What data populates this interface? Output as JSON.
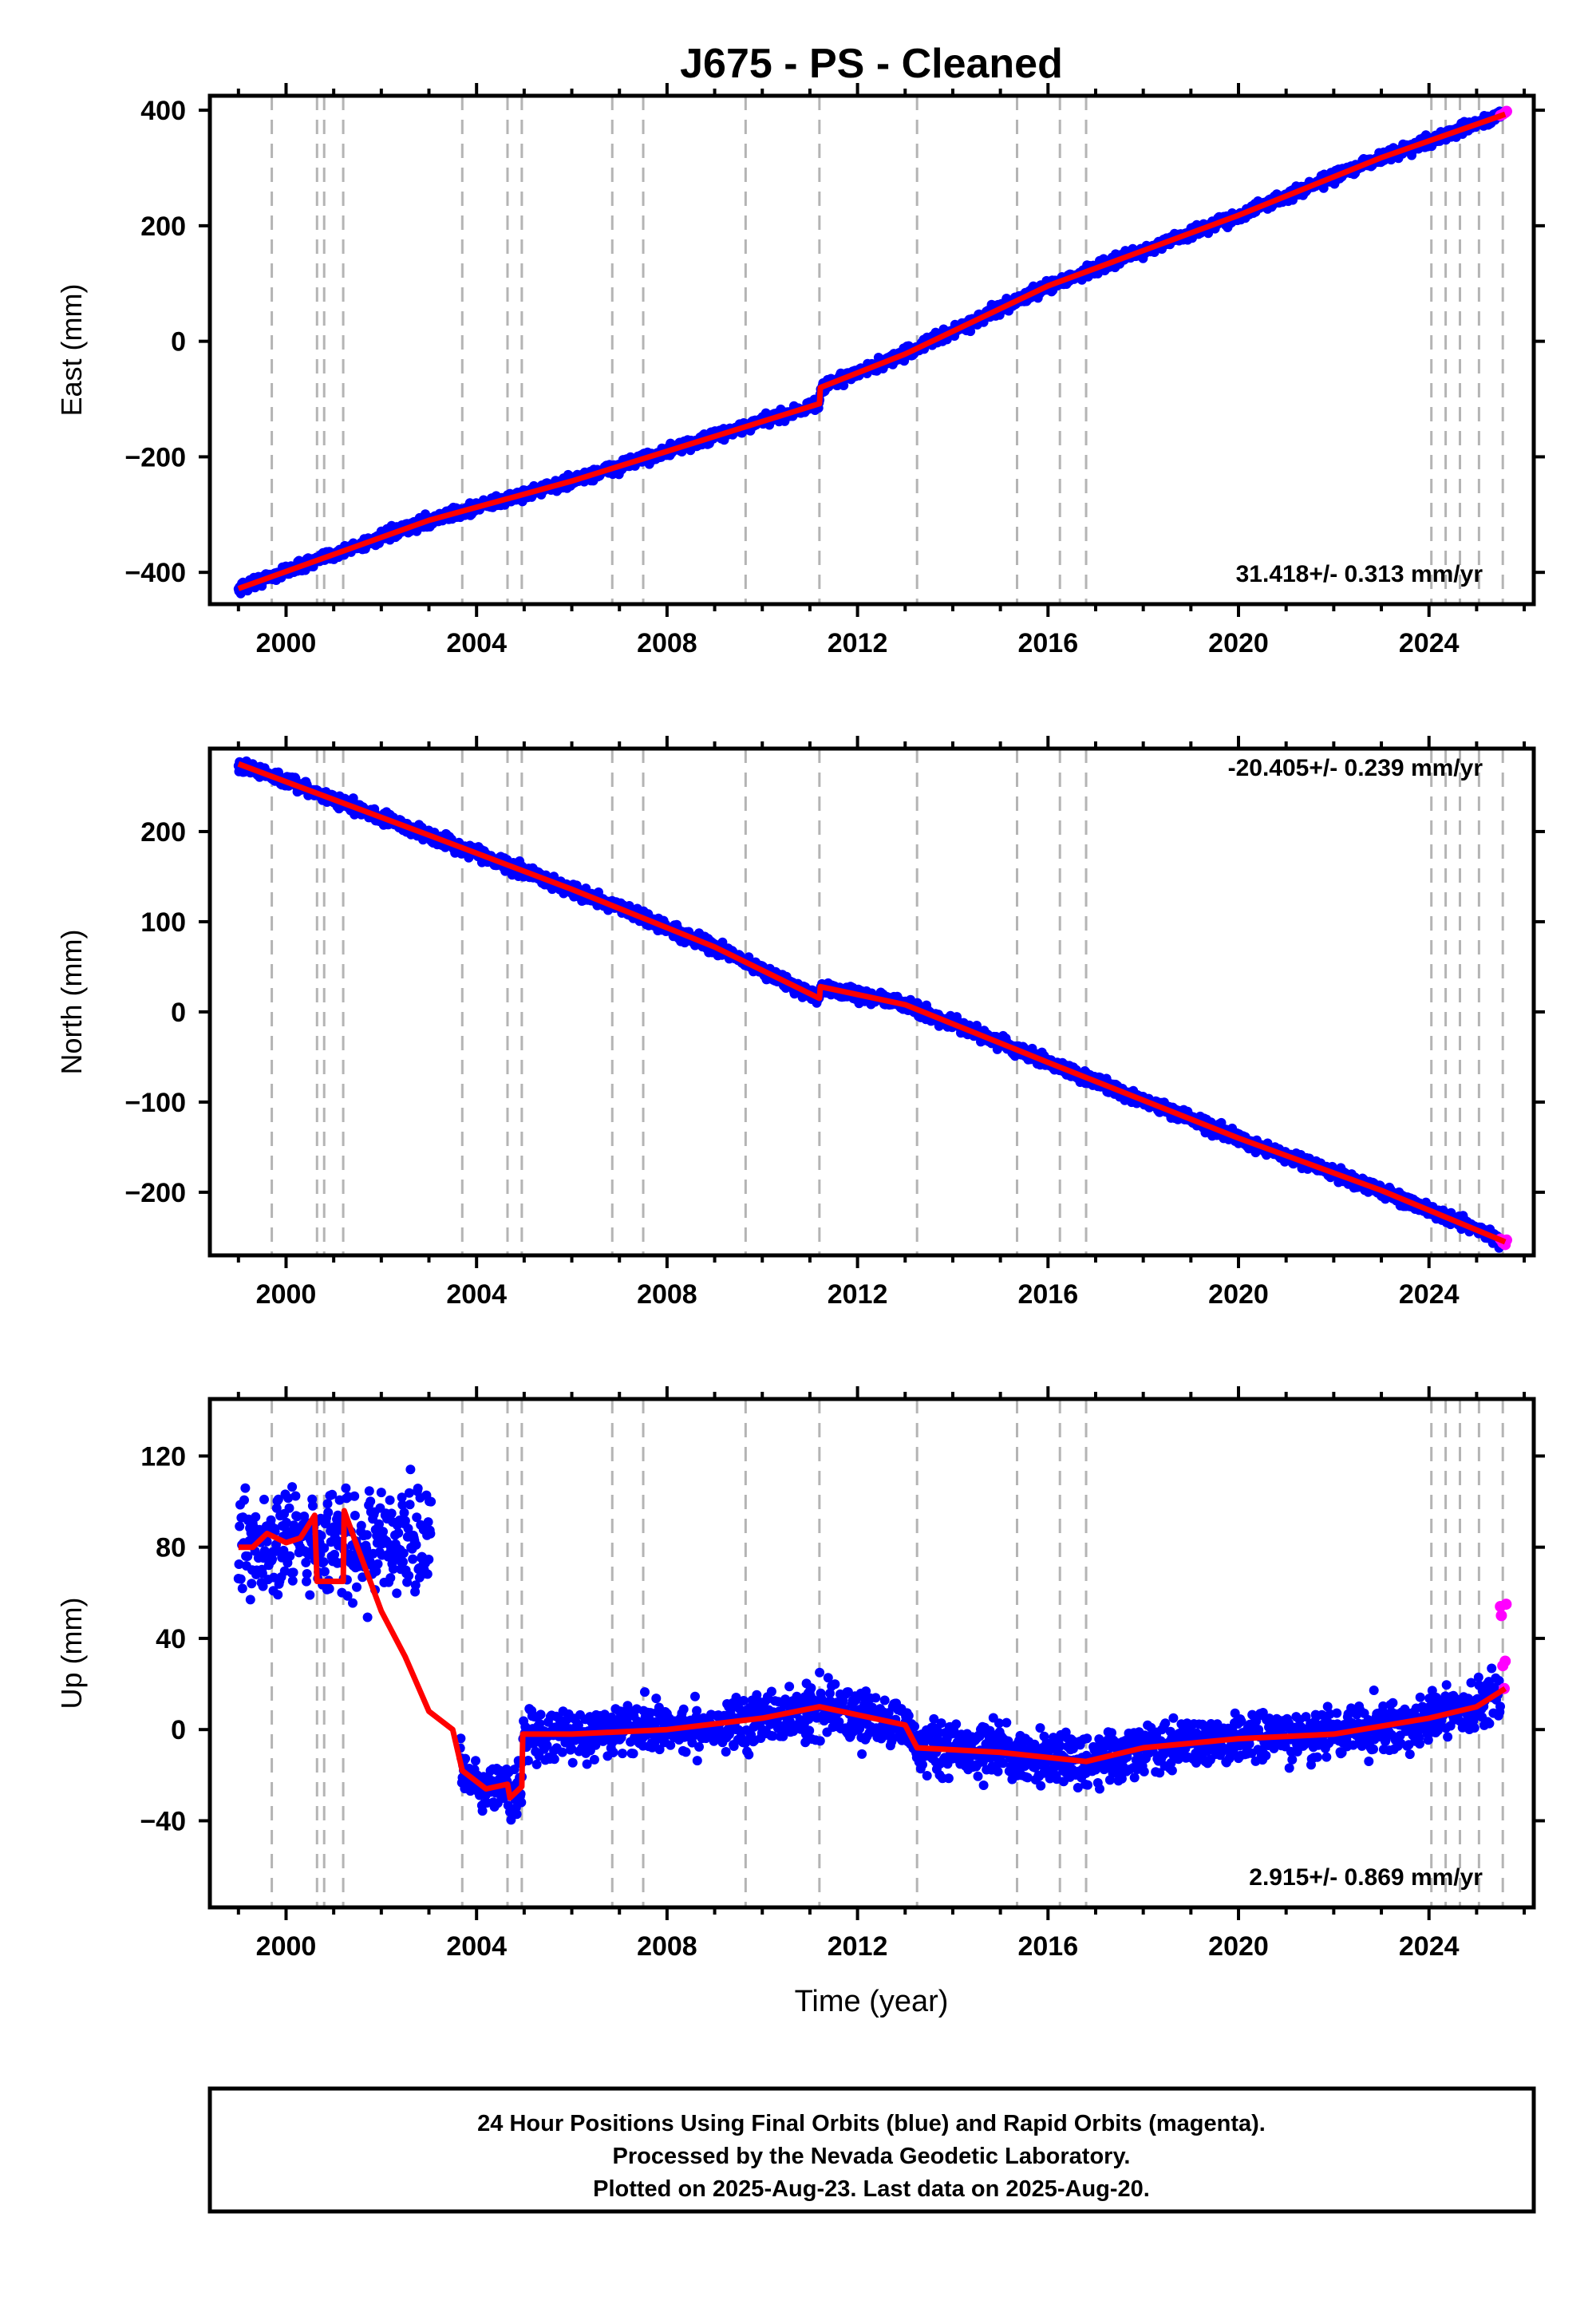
{
  "chart_data": {
    "type": "scatter",
    "title": "J675  - PS - Cleaned",
    "xlabel": "Time (year)",
    "xlim": [
      1998.4,
      2026.2
    ],
    "xticks": [
      2000,
      2004,
      2008,
      2012,
      2016,
      2020,
      2024
    ],
    "event_lines": [
      1999.7,
      2000.65,
      2000.8,
      2001.2,
      2003.7,
      2004.65,
      2004.95,
      2006.85,
      2007.5,
      2009.65,
      2011.2,
      2013.25,
      2015.35,
      2016.25,
      2016.8,
      2024.05,
      2024.35,
      2024.65,
      2025.05,
      2025.55
    ],
    "colors": {
      "final": "#0000ff",
      "rapid": "#ff00ff",
      "model": "#ff0000",
      "event_line": "#b4b4b4"
    },
    "panels": [
      {
        "component": "East",
        "ylabel": "East (mm)",
        "ylim": [
          -455,
          425
        ],
        "yticks": [
          -400,
          -200,
          0,
          200,
          400
        ],
        "rate_label": "31.418+/- 0.313 mm/yr",
        "model": [
          [
            1999.0,
            -428
          ],
          [
            2003.0,
            -310
          ],
          [
            2006.0,
            -242
          ],
          [
            2011.2,
            -108
          ],
          [
            2011.22,
            -80
          ],
          [
            2013.0,
            -22
          ],
          [
            2016.0,
            96
          ],
          [
            2020.0,
            218
          ],
          [
            2023.0,
            318
          ],
          [
            2025.6,
            393
          ]
        ],
        "noise": 7,
        "rapid": [
          [
            2025.5,
            391
          ],
          [
            2025.55,
            393
          ],
          [
            2025.6,
            396
          ],
          [
            2025.63,
            398
          ]
        ]
      },
      {
        "component": "North",
        "ylabel": "North (mm)",
        "ylim": [
          -270,
          292
        ],
        "yticks": [
          -200,
          -100,
          0,
          100,
          200
        ],
        "rate_label": "-20.405+/- 0.239 mm/yr",
        "model": [
          [
            1999.0,
            275
          ],
          [
            2003.0,
            196
          ],
          [
            2006.0,
            136
          ],
          [
            2009.0,
            72
          ],
          [
            2011.2,
            15
          ],
          [
            2011.22,
            28
          ],
          [
            2013.0,
            8
          ],
          [
            2016.0,
            -56
          ],
          [
            2020.0,
            -140
          ],
          [
            2023.0,
            -198
          ],
          [
            2025.6,
            -255
          ]
        ],
        "noise": 5,
        "rapid": [
          [
            2025.5,
            -252
          ],
          [
            2025.55,
            -256
          ],
          [
            2025.6,
            -258
          ],
          [
            2025.63,
            -253
          ]
        ]
      },
      {
        "component": "Up",
        "ylabel": "Up (mm)",
        "ylim": [
          -78,
          145
        ],
        "yticks": [
          -40,
          0,
          40,
          80,
          120
        ],
        "rate_label": "2.915+/- 0.869 mm/yr",
        "model": [
          [
            1999.0,
            80
          ],
          [
            1999.3,
            80
          ],
          [
            1999.6,
            86
          ],
          [
            2000.0,
            82
          ],
          [
            2000.3,
            84
          ],
          [
            2000.6,
            94
          ],
          [
            2000.65,
            65
          ],
          [
            2001.2,
            65
          ],
          [
            2001.22,
            96
          ],
          [
            2001.5,
            80
          ],
          [
            2002.0,
            52
          ],
          [
            2002.5,
            32
          ],
          [
            2003.0,
            8
          ],
          [
            2003.5,
            0
          ],
          [
            2003.7,
            -18
          ],
          [
            2004.2,
            -26
          ],
          [
            2004.65,
            -24
          ],
          [
            2004.7,
            -30
          ],
          [
            2004.95,
            -25
          ],
          [
            2004.97,
            -2
          ],
          [
            2006.0,
            -2
          ],
          [
            2008.0,
            0
          ],
          [
            2010.0,
            5
          ],
          [
            2011.2,
            10
          ],
          [
            2013.0,
            2
          ],
          [
            2013.25,
            -8
          ],
          [
            2015.0,
            -10
          ],
          [
            2016.8,
            -14
          ],
          [
            2018.0,
            -8
          ],
          [
            2020.0,
            -4
          ],
          [
            2022.0,
            -2
          ],
          [
            2024.0,
            5
          ],
          [
            2025.0,
            10
          ],
          [
            2025.6,
            18
          ]
        ],
        "noise": 8,
        "rapid": [
          [
            2025.5,
            54
          ],
          [
            2025.52,
            50
          ],
          [
            2025.55,
            28
          ],
          [
            2025.58,
            18
          ],
          [
            2025.6,
            30
          ],
          [
            2025.62,
            55
          ]
        ]
      }
    ]
  },
  "footer": {
    "line1": "24 Hour Positions Using Final Orbits (blue) and Rapid Orbits (magenta).",
    "line2": "Processed by the Nevada Geodetic Laboratory.",
    "line3": "Plotted on 2025-Aug-23. Last data on 2025-Aug-20."
  }
}
